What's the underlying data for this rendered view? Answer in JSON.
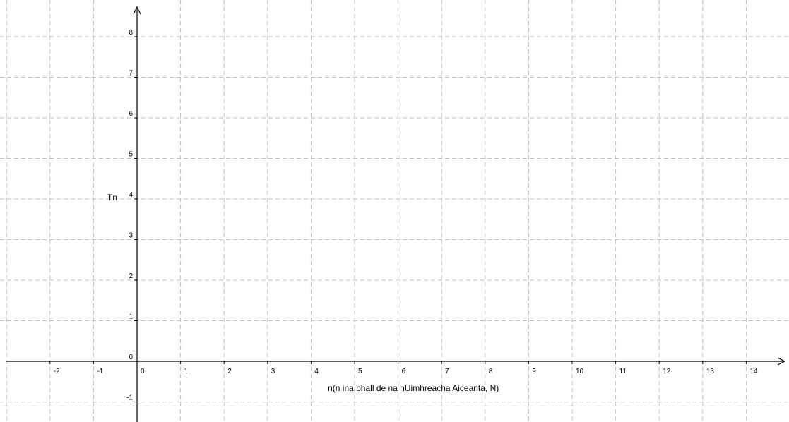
{
  "chart_data": {
    "type": "scatter",
    "title": "",
    "xlabel": "n(n ina bhall de na hUimhreacha Aiceanta, N)",
    "ylabel": "Tn",
    "xlim": [
      -3,
      15
    ],
    "ylim": [
      -1.2,
      8.8
    ],
    "xticks": [
      -2,
      -1,
      0,
      1,
      2,
      3,
      4,
      5,
      6,
      7,
      8,
      9,
      10,
      11,
      12,
      13,
      14
    ],
    "yticks": [
      -1,
      0,
      1,
      2,
      3,
      4,
      5,
      6,
      7,
      8
    ],
    "grid": true,
    "grid_style": "dashed",
    "grid_color": "#c0c0c0",
    "axis_color": "#000000",
    "series": []
  }
}
